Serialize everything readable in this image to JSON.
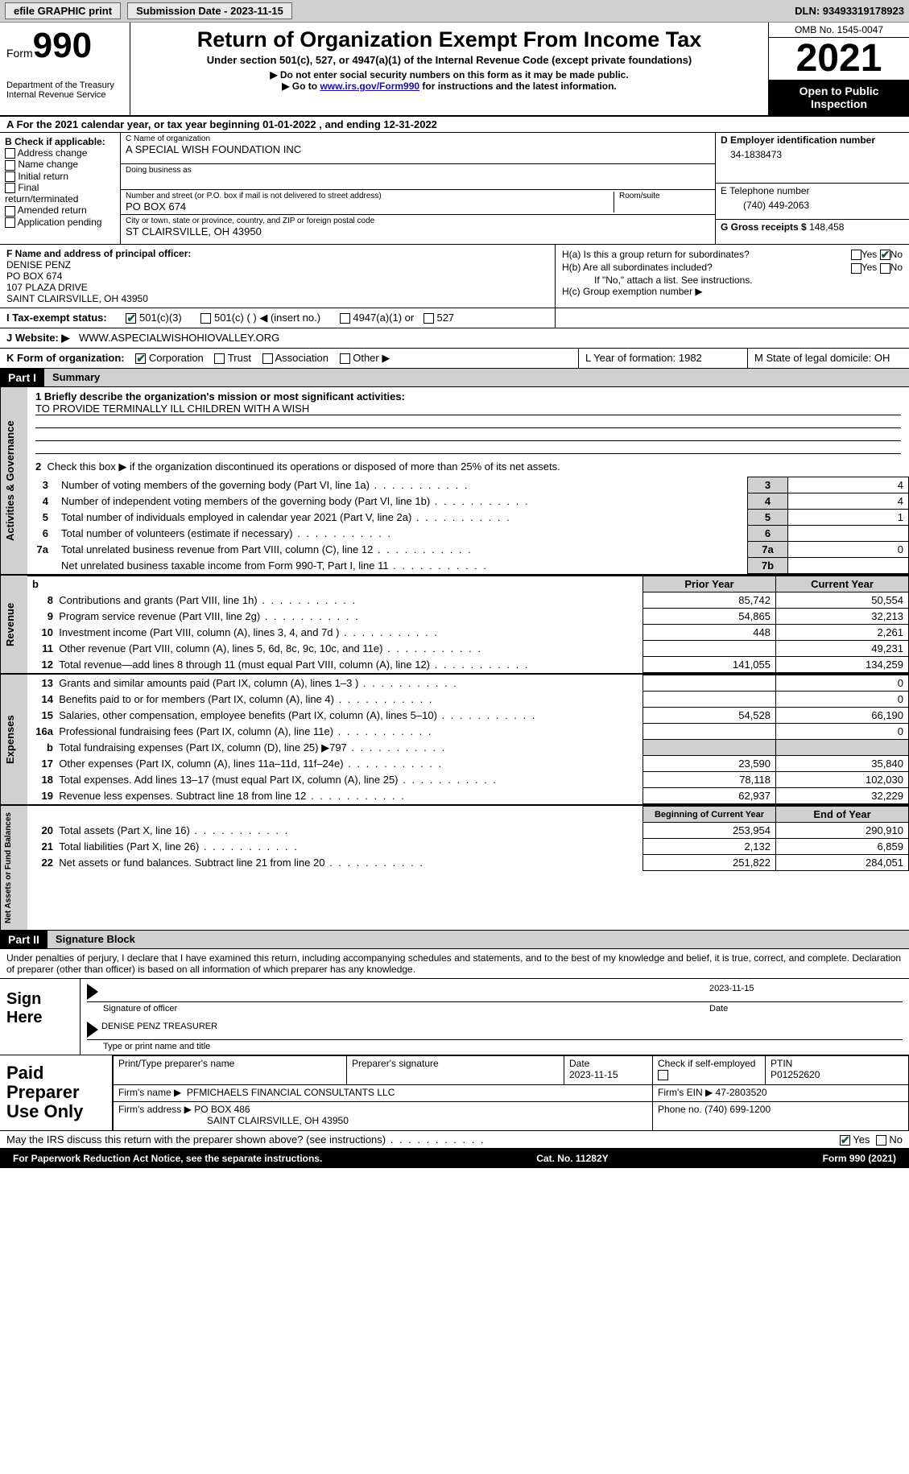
{
  "header_bar": {
    "efile": "efile GRAPHIC print",
    "submission_date": "Submission Date - 2023-11-15",
    "dln": "DLN: 93493319178923"
  },
  "form_header": {
    "form_word": "Form",
    "form_num": "990",
    "dept": "Department of the Treasury\nInternal Revenue Service",
    "title": "Return of Organization Exempt From Income Tax",
    "subtitle": "Under section 501(c), 527, or 4947(a)(1) of the Internal Revenue Code (except private foundations)",
    "inst1": "Do not enter social security numbers on this form as it may be made public.",
    "inst2_pre": "Go to ",
    "inst2_link": "www.irs.gov/Form990",
    "inst2_post": " for instructions and the latest information.",
    "omb": "OMB No. 1545-0047",
    "year": "2021",
    "open": "Open to Public Inspection"
  },
  "row_a": "A For the 2021 calendar year, or tax year beginning 01-01-2022   , and ending 12-31-2022",
  "section_b": {
    "label": "B Check if applicable:",
    "opts": [
      "Address change",
      "Name change",
      "Initial return",
      "Final return/terminated",
      "Amended return",
      "Application pending"
    ]
  },
  "section_c": {
    "name_label": "C Name of organization",
    "name": "A SPECIAL WISH FOUNDATION INC",
    "dba_label": "Doing business as",
    "street_label": "Number and street (or P.O. box if mail is not delivered to street address)",
    "room_label": "Room/suite",
    "street": "PO BOX 674",
    "city_label": "City or town, state or province, country, and ZIP or foreign postal code",
    "city": "ST CLAIRSVILLE, OH  43950"
  },
  "section_d": {
    "ein_label": "D Employer identification number",
    "ein": "34-1838473",
    "phone_label": "E Telephone number",
    "phone": "(740) 449-2063",
    "gross_label": "G Gross receipts $",
    "gross": "148,458"
  },
  "section_f": {
    "label": "F  Name and address of principal officer:",
    "lines": [
      "DENISE PENZ",
      "PO BOX 674",
      "107 PLAZA DRIVE",
      "SAINT CLAIRSVILLE, OH  43950"
    ]
  },
  "section_h": {
    "ha": "H(a)  Is this a group return for subordinates?",
    "hb": "H(b)  Are all subordinates included?",
    "hb_note": "If \"No,\" attach a list. See instructions.",
    "hc": "H(c)  Group exemption number ▶"
  },
  "row_i": {
    "label": "I  Tax-exempt status:",
    "opt1": "501(c)(3)",
    "opt2": "501(c) (  ) ◀ (insert no.)",
    "opt3": "4947(a)(1) or",
    "opt4": "527"
  },
  "row_j": {
    "label": "J  Website: ▶",
    "value": "WWW.ASPECIALWISHOHIOVALLEY.ORG"
  },
  "row_k": {
    "k": "K Form of organization:",
    "opts": [
      "Corporation",
      "Trust",
      "Association",
      "Other ▶"
    ],
    "l": "L Year of formation: 1982",
    "m": "M State of legal domicile: OH"
  },
  "part1": {
    "header": "Part I",
    "title": "Summary",
    "line1_label": "1  Briefly describe the organization's mission or most significant activities:",
    "line1_value": "TO PROVIDE TERMINALLY ILL CHILDREN WITH A WISH",
    "line2": "Check this box ▶       if the organization discontinued its operations or disposed of more than 25% of its net assets.",
    "governance": {
      "label": "Activities & Governance",
      "rows": [
        {
          "n": "3",
          "desc": "Number of voting members of the governing body (Part VI, line 1a)",
          "box": "3",
          "val": "4"
        },
        {
          "n": "4",
          "desc": "Number of independent voting members of the governing body (Part VI, line 1b)",
          "box": "4",
          "val": "4"
        },
        {
          "n": "5",
          "desc": "Total number of individuals employed in calendar year 2021 (Part V, line 2a)",
          "box": "5",
          "val": "1"
        },
        {
          "n": "6",
          "desc": "Total number of volunteers (estimate if necessary)",
          "box": "6",
          "val": ""
        },
        {
          "n": "7a",
          "desc": "Total unrelated business revenue from Part VIII, column (C), line 12",
          "box": "7a",
          "val": "0"
        },
        {
          "n": "",
          "desc": "Net unrelated business taxable income from Form 990-T, Part I, line 11",
          "box": "7b",
          "val": ""
        }
      ]
    },
    "col_headers": {
      "prior": "Prior Year",
      "current": "Current Year"
    },
    "revenue": {
      "label": "Revenue",
      "rows": [
        {
          "n": "8",
          "desc": "Contributions and grants (Part VIII, line 1h)",
          "prior": "85,742",
          "current": "50,554"
        },
        {
          "n": "9",
          "desc": "Program service revenue (Part VIII, line 2g)",
          "prior": "54,865",
          "current": "32,213"
        },
        {
          "n": "10",
          "desc": "Investment income (Part VIII, column (A), lines 3, 4, and 7d )",
          "prior": "448",
          "current": "2,261"
        },
        {
          "n": "11",
          "desc": "Other revenue (Part VIII, column (A), lines 5, 6d, 8c, 9c, 10c, and 11e)",
          "prior": "",
          "current": "49,231"
        },
        {
          "n": "12",
          "desc": "Total revenue—add lines 8 through 11 (must equal Part VIII, column (A), line 12)",
          "prior": "141,055",
          "current": "134,259"
        }
      ]
    },
    "expenses": {
      "label": "Expenses",
      "rows": [
        {
          "n": "13",
          "desc": "Grants and similar amounts paid (Part IX, column (A), lines 1–3 )",
          "prior": "",
          "current": "0"
        },
        {
          "n": "14",
          "desc": "Benefits paid to or for members (Part IX, column (A), line 4)",
          "prior": "",
          "current": "0"
        },
        {
          "n": "15",
          "desc": "Salaries, other compensation, employee benefits (Part IX, column (A), lines 5–10)",
          "prior": "54,528",
          "current": "66,190"
        },
        {
          "n": "16a",
          "desc": "Professional fundraising fees (Part IX, column (A), line 11e)",
          "prior": "",
          "current": "0"
        },
        {
          "n": "b",
          "desc": "Total fundraising expenses (Part IX, column (D), line 25) ▶797",
          "prior": "grey",
          "current": "grey"
        },
        {
          "n": "17",
          "desc": "Other expenses (Part IX, column (A), lines 11a–11d, 11f–24e)",
          "prior": "23,590",
          "current": "35,840"
        },
        {
          "n": "18",
          "desc": "Total expenses. Add lines 13–17 (must equal Part IX, column (A), line 25)",
          "prior": "78,118",
          "current": "102,030"
        },
        {
          "n": "19",
          "desc": "Revenue less expenses. Subtract line 18 from line 12",
          "prior": "62,937",
          "current": "32,229"
        }
      ]
    },
    "net_headers": {
      "begin": "Beginning of Current Year",
      "end": "End of Year"
    },
    "netassets": {
      "label": "Net Assets or Fund Balances",
      "rows": [
        {
          "n": "20",
          "desc": "Total assets (Part X, line 16)",
          "prior": "253,954",
          "current": "290,910"
        },
        {
          "n": "21",
          "desc": "Total liabilities (Part X, line 26)",
          "prior": "2,132",
          "current": "6,859"
        },
        {
          "n": "22",
          "desc": "Net assets or fund balances. Subtract line 21 from line 20",
          "prior": "251,822",
          "current": "284,051"
        }
      ]
    }
  },
  "part2": {
    "header": "Part II",
    "title": "Signature Block",
    "declaration": "Under penalties of perjury, I declare that I have examined this return, including accompanying schedules and statements, and to the best of my knowledge and belief, it is true, correct, and complete. Declaration of preparer (other than officer) is based on all information of which preparer has any knowledge.",
    "sign_here": "Sign Here",
    "sig_date": "2023-11-15",
    "sig_officer_label": "Signature of officer",
    "date_label": "Date",
    "sig_name": "DENISE PENZ TREASURER",
    "sig_name_label": "Type or print name and title",
    "paid": "Paid Preparer Use Only",
    "prep": {
      "name_label": "Print/Type preparer's name",
      "sig_label": "Preparer's signature",
      "date_label": "Date",
      "date": "2023-11-15",
      "check_label": "Check        if self-employed",
      "ptin_label": "PTIN",
      "ptin": "P01252620",
      "firm_name_label": "Firm's name    ▶",
      "firm_name": "PFMICHAELS FINANCIAL CONSULTANTS LLC",
      "firm_ein_label": "Firm's EIN ▶",
      "firm_ein": "47-2803520",
      "firm_addr_label": "Firm's address ▶",
      "firm_addr1": "PO BOX 486",
      "firm_addr2": "SAINT CLAIRSVILLE, OH  43950",
      "phone_label": "Phone no.",
      "phone": "(740) 699-1200"
    },
    "discuss": "May the IRS discuss this return with the preparer shown above? (see instructions)",
    "yes": "Yes",
    "no": "No"
  },
  "footer": {
    "left": "For Paperwork Reduction Act Notice, see the separate instructions.",
    "center": "Cat. No. 11282Y",
    "right": "Form 990 (2021)"
  }
}
